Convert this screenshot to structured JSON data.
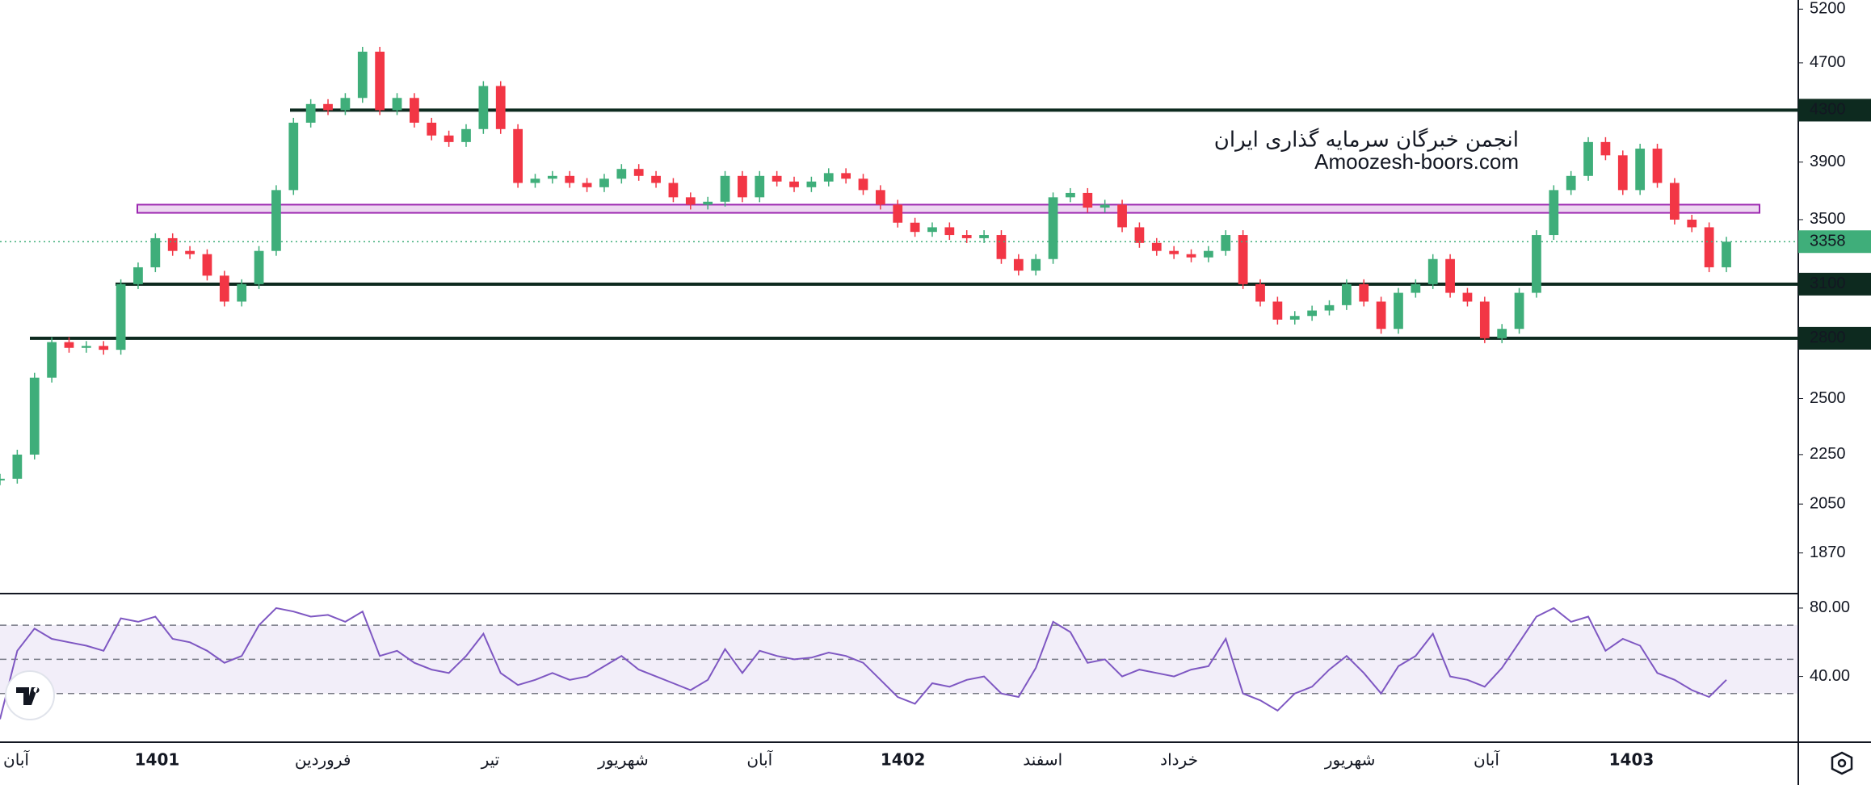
{
  "chart_data": {
    "type": "candlestick",
    "watermark": [
      "انجمن خبرگان سرمایه گذاری ایران",
      "Amoozesh-boors.com"
    ],
    "log_scale": true,
    "ylim": [
      1735,
      5290
    ],
    "yticks": [
      5200,
      4700,
      3900,
      3500,
      2500,
      2250,
      2050,
      1870
    ],
    "levels": [
      4300,
      3100,
      2800
    ],
    "band": [
      3545,
      3600
    ],
    "last_price": 3358,
    "up_color": "#3fae7a",
    "down_color": "#f23645",
    "xlim": [
      0,
      100
    ],
    "xticks": [
      {
        "value": 0.8,
        "label": "آبان",
        "major": false
      },
      {
        "value": 9.1,
        "label": "1401",
        "major": true
      },
      {
        "value": 18.7,
        "label": "فروردین",
        "major": false
      },
      {
        "value": 28.4,
        "label": "تیر",
        "major": false
      },
      {
        "value": 36.1,
        "label": "شهریور",
        "major": false
      },
      {
        "value": 44,
        "label": "آبان",
        "major": false
      },
      {
        "value": 52.3,
        "label": "1402",
        "major": true
      },
      {
        "value": 60.4,
        "label": "اسفند",
        "major": false
      },
      {
        "value": 68.3,
        "label": "خرداد",
        "major": false
      },
      {
        "value": 78.2,
        "label": "شهریور",
        "major": false
      },
      {
        "value": 86.1,
        "label": "آبان",
        "major": false
      },
      {
        "value": 94.5,
        "label": "1403",
        "major": true
      }
    ],
    "close": [
      2150,
      2250,
      2600,
      2780,
      2750,
      2760,
      2740,
      3100,
      3200,
      3380,
      3300,
      3280,
      3150,
      3000,
      3100,
      3300,
      3700,
      4200,
      4350,
      4300,
      4400,
      4800,
      4300,
      4400,
      4200,
      4100,
      4050,
      4150,
      4500,
      4150,
      3750,
      3780,
      3800,
      3750,
      3720,
      3780,
      3850,
      3800,
      3750,
      3650,
      3600,
      3620,
      3800,
      3650,
      3800,
      3760,
      3720,
      3760,
      3820,
      3780,
      3700,
      3600,
      3480,
      3420,
      3450,
      3400,
      3380,
      3400,
      3250,
      3180,
      3250,
      3650,
      3680,
      3580,
      3600,
      3450,
      3350,
      3300,
      3280,
      3260,
      3300,
      3400,
      3100,
      3000,
      2900,
      2920,
      2950,
      2980,
      3100,
      3000,
      2850,
      3050,
      3100,
      3250,
      3050,
      3000,
      2800,
      2850,
      3050,
      3400,
      3700,
      3800,
      4050,
      3950,
      3700,
      4000,
      3750,
      3500,
      3450,
      3200,
      3358
    ],
    "rsi": {
      "color": "#7e57c2",
      "ylim": [
        2,
        88
      ],
      "yticks": [
        {
          "value": 80,
          "label": "80.00"
        },
        {
          "value": 40,
          "label": "40.00"
        }
      ],
      "levels": [
        70,
        50,
        30
      ],
      "values": [
        15,
        55,
        68,
        62,
        60,
        58,
        55,
        74,
        72,
        75,
        62,
        60,
        55,
        48,
        52,
        70,
        80,
        78,
        75,
        76,
        72,
        78,
        52,
        55,
        48,
        44,
        42,
        52,
        65,
        42,
        35,
        38,
        42,
        38,
        40,
        46,
        52,
        44,
        40,
        36,
        32,
        38,
        56,
        42,
        55,
        52,
        50,
        51,
        54,
        52,
        48,
        38,
        28,
        24,
        36,
        34,
        38,
        40,
        30,
        28,
        45,
        72,
        66,
        48,
        50,
        40,
        44,
        42,
        40,
        44,
        46,
        62,
        30,
        26,
        20,
        30,
        34,
        44,
        52,
        42,
        30,
        46,
        52,
        65,
        40,
        38,
        34,
        45,
        60,
        75,
        80,
        72,
        75,
        55,
        62,
        58,
        42,
        38,
        32,
        28,
        38
      ]
    }
  }
}
